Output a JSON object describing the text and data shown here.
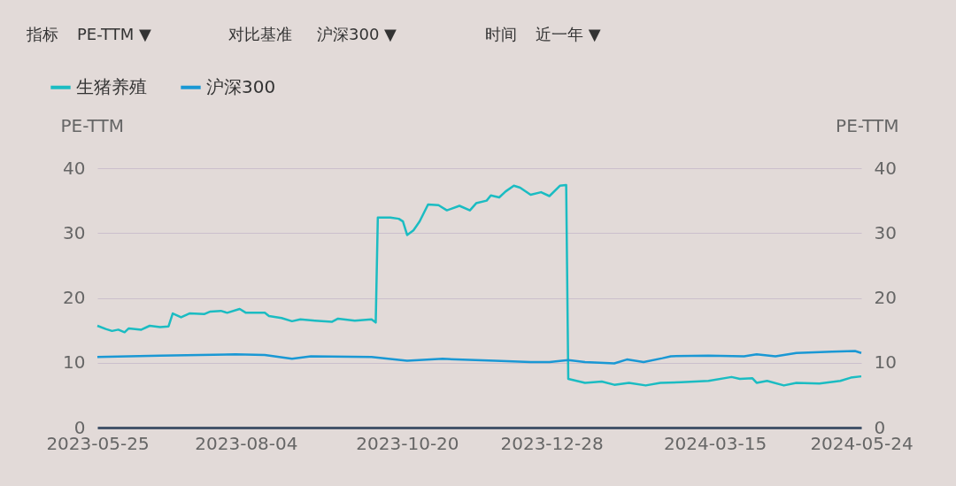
{
  "chart_data": {
    "type": "line",
    "ylabel": "PE-TTM",
    "y2label": "PE-TTM",
    "annotations": [
      "指标",
      "PE-TTM ▼",
      "对比基准",
      "沪深300 ▼",
      "时间",
      "近一年 ▼"
    ],
    "xlim": [
      "2023-05-25",
      "2024-05-24"
    ],
    "xticks": [
      "2023-05-25",
      "2023-08-04",
      "2023-10-20",
      "2023-12-28",
      "2024-03-15",
      "2024-05-24"
    ],
    "ylim": [
      0,
      40
    ],
    "yticks": [
      0,
      10,
      20,
      30,
      40
    ],
    "y2lim": [
      0,
      40
    ],
    "y2ticks": [
      0,
      10,
      20,
      30,
      40
    ],
    "grid": "y",
    "legend": "top left",
    "marker": "none",
    "line_style": "solid",
    "series": [
      {
        "name": "生猪养殖",
        "color": "#1bbcc2",
        "x": [
          "2023-05-25",
          "2023-05-29",
          "2023-06-01",
          "2023-06-04",
          "2023-06-07",
          "2023-06-09",
          "2023-06-15",
          "2023-06-19",
          "2023-06-24",
          "2023-06-28",
          "2023-06-30",
          "2023-07-04",
          "2023-07-08",
          "2023-07-15",
          "2023-07-18",
          "2023-07-23",
          "2023-07-26",
          "2023-08-01",
          "2023-08-04",
          "2023-08-13",
          "2023-08-15",
          "2023-08-21",
          "2023-08-26",
          "2023-08-30",
          "2023-09-06",
          "2023-09-14",
          "2023-09-17",
          "2023-09-25",
          "2023-10-03",
          "2023-10-05",
          "2023-10-06",
          "2023-10-12",
          "2023-10-16",
          "2023-10-18",
          "2023-10-20",
          "2023-10-23",
          "2023-10-26",
          "2023-10-30",
          "2023-11-04",
          "2023-11-08",
          "2023-11-14",
          "2023-11-19",
          "2023-11-22",
          "2023-11-27",
          "2023-11-29",
          "2023-12-03",
          "2023-12-06",
          "2023-12-10",
          "2023-12-13",
          "2023-12-18",
          "2023-12-23",
          "2023-12-27",
          "2024-01-01",
          "2024-01-04",
          "2024-01-05",
          "2024-01-13",
          "2024-01-21",
          "2024-01-27",
          "2024-02-03",
          "2024-02-11",
          "2024-02-18",
          "2024-02-28",
          "2024-03-12",
          "2024-03-23",
          "2024-03-27",
          "2024-04-02",
          "2024-04-04",
          "2024-04-09",
          "2024-04-17",
          "2024-04-23",
          "2024-05-04",
          "2024-05-14",
          "2024-05-19",
          "2024-05-24"
        ],
        "values": [
          15.7,
          15.2,
          14.9,
          15.1,
          14.7,
          15.3,
          15.1,
          15.7,
          15.5,
          15.6,
          17.6,
          17.0,
          17.6,
          17.5,
          17.9,
          18.0,
          17.7,
          18.3,
          17.7,
          17.7,
          17.2,
          16.9,
          16.4,
          16.7,
          16.5,
          16.3,
          16.8,
          16.5,
          16.7,
          16.2,
          32.4,
          32.4,
          32.2,
          31.8,
          29.7,
          30.4,
          31.8,
          34.4,
          34.3,
          33.5,
          34.2,
          33.5,
          34.6,
          35.0,
          35.8,
          35.5,
          36.4,
          37.3,
          37.0,
          35.9,
          36.3,
          35.7,
          37.3,
          37.4,
          7.5,
          6.9,
          7.1,
          6.6,
          6.9,
          6.5,
          6.9,
          7.0,
          7.2,
          7.8,
          7.5,
          7.6,
          6.9,
          7.2,
          6.5,
          6.9,
          6.8,
          7.2,
          7.7,
          7.9
        ]
      },
      {
        "name": "沪深300",
        "color": "#1a98d4",
        "axis": "y2",
        "x": [
          "2023-05-25",
          "2023-06-24",
          "2023-07-30",
          "2023-08-13",
          "2023-08-26",
          "2023-09-04",
          "2023-10-03",
          "2023-10-20",
          "2023-11-06",
          "2023-12-01",
          "2023-12-18",
          "2023-12-27",
          "2024-01-05",
          "2024-01-13",
          "2024-01-27",
          "2024-02-02",
          "2024-02-10",
          "2024-02-19",
          "2024-02-23",
          "2024-03-12",
          "2024-03-29",
          "2024-04-04",
          "2024-04-13",
          "2024-04-23",
          "2024-05-10",
          "2024-05-21",
          "2024-05-24"
        ],
        "values": [
          10.9,
          11.1,
          11.3,
          11.2,
          10.6,
          11.0,
          10.9,
          10.3,
          10.6,
          10.3,
          10.1,
          10.1,
          10.4,
          10.1,
          9.9,
          10.5,
          10.1,
          10.7,
          11.0,
          11.1,
          11.0,
          11.3,
          11.0,
          11.5,
          11.7,
          11.8,
          11.5
        ]
      }
    ]
  }
}
